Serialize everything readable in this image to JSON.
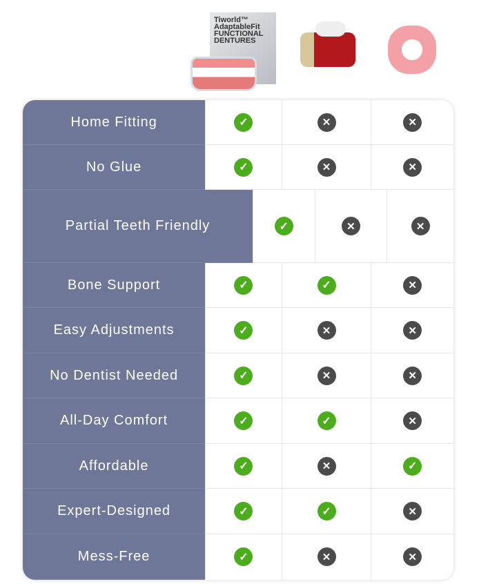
{
  "products": [
    {
      "name": "Tiworld™ AdaptableFit FUNCTIONAL DENTURES",
      "icon": "denture-box-image"
    },
    {
      "icon": "dental-implant-image"
    },
    {
      "icon": "traditional-dentures-image"
    }
  ],
  "colors": {
    "label_bg": "#6f7799",
    "check": "#4cad1c",
    "cross": "#4b4b4b"
  },
  "rows": [
    {
      "label": "Home Fitting",
      "values": [
        true,
        false,
        false
      ]
    },
    {
      "label": "No Glue",
      "values": [
        true,
        false,
        false
      ]
    },
    {
      "label": "Partial Teeth Friendly",
      "values": [
        true,
        false,
        false
      ]
    },
    {
      "label": "Bone Support",
      "values": [
        true,
        true,
        false
      ]
    },
    {
      "label": "Easy Adjustments",
      "values": [
        true,
        false,
        false
      ]
    },
    {
      "label": "No Dentist Needed",
      "values": [
        true,
        false,
        false
      ]
    },
    {
      "label": "All-Day Comfort",
      "values": [
        true,
        true,
        false
      ]
    },
    {
      "label": "Affordable",
      "values": [
        true,
        false,
        true
      ]
    },
    {
      "label": "Expert-Designed",
      "values": [
        true,
        true,
        false
      ]
    },
    {
      "label": "Mess-Free",
      "values": [
        true,
        false,
        false
      ]
    }
  ]
}
